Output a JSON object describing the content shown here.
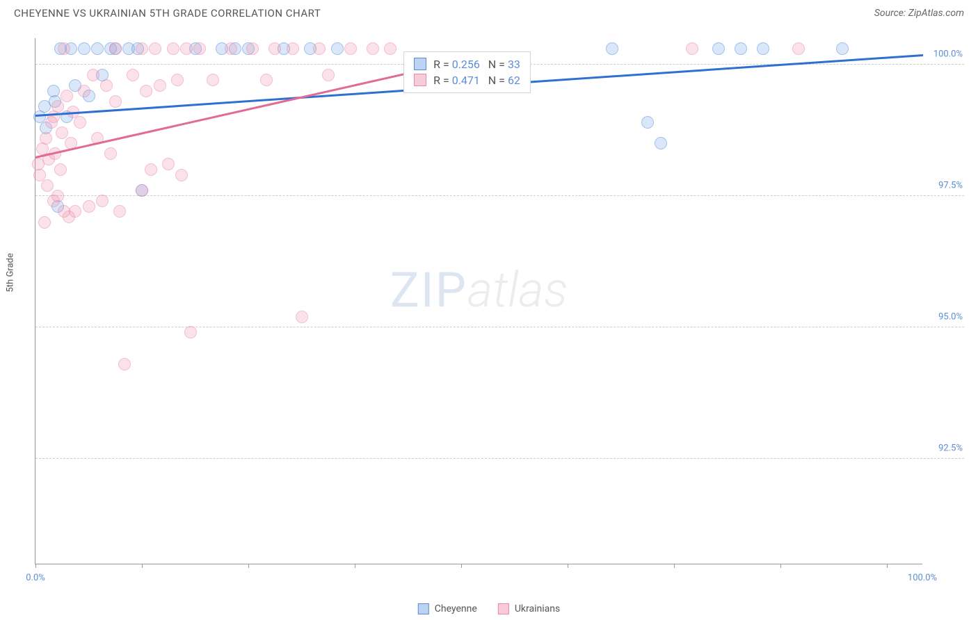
{
  "header": {
    "title": "CHEYENNE VS UKRAINIAN 5TH GRADE CORRELATION CHART",
    "source": "Source: ZipAtlas.com"
  },
  "watermark": {
    "zip": "ZIP",
    "atlas": "atlas"
  },
  "chart": {
    "type": "scatter",
    "ylabel": "5th Grade",
    "background_color": "#ffffff",
    "grid_color": "#cccccc",
    "axis_color": "#999999",
    "xlim": [
      0,
      100
    ],
    "ylim": [
      90.5,
      100.5
    ],
    "yticks": [
      {
        "value": 100.0,
        "label": "100.0%"
      },
      {
        "value": 97.5,
        "label": "97.5%"
      },
      {
        "value": 95.0,
        "label": "95.0%"
      },
      {
        "value": 92.5,
        "label": "92.5%"
      }
    ],
    "xticks": [
      0,
      12,
      24,
      36,
      48,
      60,
      72,
      84,
      96
    ],
    "xtick_labels": [
      {
        "value": 0,
        "label": "0.0%"
      },
      {
        "value": 100,
        "label": "100.0%"
      }
    ],
    "marker_radius": 9,
    "series": [
      {
        "name": "Cheyenne",
        "color_fill": "rgba(107,158,228,0.45)",
        "color_stroke": "#5b8dd6",
        "trend": {
          "x1": 0,
          "y1": 99.05,
          "x2": 100,
          "y2": 100.2,
          "color": "#2f6fd0",
          "width": 2.5
        },
        "stats": {
          "R": "0.256",
          "N": "33"
        },
        "points": [
          [
            0.5,
            99.0
          ],
          [
            1.0,
            99.2
          ],
          [
            1.2,
            98.8
          ],
          [
            2.0,
            99.5
          ],
          [
            2.2,
            99.3
          ],
          [
            2.5,
            97.3
          ],
          [
            2.8,
            100.3
          ],
          [
            3.5,
            99.0
          ],
          [
            4.0,
            100.3
          ],
          [
            4.5,
            99.6
          ],
          [
            5.5,
            100.3
          ],
          [
            6.0,
            99.4
          ],
          [
            7.0,
            100.3
          ],
          [
            7.5,
            99.8
          ],
          [
            8.5,
            100.3
          ],
          [
            9.0,
            100.3
          ],
          [
            10.5,
            100.3
          ],
          [
            11.5,
            100.3
          ],
          [
            12.0,
            97.6
          ],
          [
            18.0,
            100.3
          ],
          [
            21.0,
            100.3
          ],
          [
            22.5,
            100.3
          ],
          [
            24.0,
            100.3
          ],
          [
            28.0,
            100.3
          ],
          [
            31.0,
            100.3
          ],
          [
            34.0,
            100.3
          ],
          [
            65.0,
            100.3
          ],
          [
            69.0,
            98.9
          ],
          [
            70.5,
            98.5
          ],
          [
            77.0,
            100.3
          ],
          [
            79.5,
            100.3
          ],
          [
            82.0,
            100.3
          ],
          [
            91.0,
            100.3
          ]
        ]
      },
      {
        "name": "Ukrainians",
        "color_fill": "rgba(238,140,170,0.45)",
        "color_stroke": "#e88aa8",
        "trend": {
          "x1": 0,
          "y1": 98.25,
          "x2": 42,
          "y2": 99.85,
          "color": "#e16b92",
          "width": 2.5
        },
        "stats": {
          "R": "0.471",
          "N": "62"
        },
        "points": [
          [
            0.3,
            98.1
          ],
          [
            0.5,
            97.9
          ],
          [
            0.8,
            98.4
          ],
          [
            1.0,
            97.0
          ],
          [
            1.2,
            98.6
          ],
          [
            1.3,
            97.7
          ],
          [
            1.5,
            98.2
          ],
          [
            1.8,
            98.9
          ],
          [
            2.0,
            99.0
          ],
          [
            2.0,
            97.4
          ],
          [
            2.2,
            98.3
          ],
          [
            2.5,
            97.5
          ],
          [
            2.5,
            99.2
          ],
          [
            2.8,
            98.0
          ],
          [
            3.0,
            98.7
          ],
          [
            3.2,
            97.2
          ],
          [
            3.2,
            100.3
          ],
          [
            3.5,
            99.4
          ],
          [
            3.8,
            97.1
          ],
          [
            4.0,
            98.5
          ],
          [
            4.2,
            99.1
          ],
          [
            4.5,
            97.2
          ],
          [
            5.0,
            98.9
          ],
          [
            5.5,
            99.5
          ],
          [
            6.0,
            97.3
          ],
          [
            6.5,
            99.8
          ],
          [
            7.0,
            98.6
          ],
          [
            7.5,
            97.4
          ],
          [
            8.0,
            99.6
          ],
          [
            8.5,
            98.3
          ],
          [
            9.0,
            100.3
          ],
          [
            9.0,
            99.3
          ],
          [
            9.5,
            97.2
          ],
          [
            10.0,
            94.3
          ],
          [
            11.0,
            99.8
          ],
          [
            12.0,
            100.3
          ],
          [
            12.0,
            97.6
          ],
          [
            12.5,
            99.5
          ],
          [
            13.0,
            98.0
          ],
          [
            13.5,
            100.3
          ],
          [
            14.0,
            99.6
          ],
          [
            15.0,
            98.1
          ],
          [
            15.5,
            100.3
          ],
          [
            16.0,
            99.7
          ],
          [
            16.5,
            97.9
          ],
          [
            17.0,
            100.3
          ],
          [
            17.5,
            94.9
          ],
          [
            18.5,
            100.3
          ],
          [
            20.0,
            99.7
          ],
          [
            22.0,
            100.3
          ],
          [
            24.5,
            100.3
          ],
          [
            26.0,
            99.7
          ],
          [
            27.0,
            100.3
          ],
          [
            29.0,
            100.3
          ],
          [
            30.0,
            95.2
          ],
          [
            32.0,
            100.3
          ],
          [
            33.0,
            99.8
          ],
          [
            35.5,
            100.3
          ],
          [
            38.0,
            100.3
          ],
          [
            40.0,
            100.3
          ],
          [
            74.0,
            100.3
          ],
          [
            86.0,
            100.3
          ]
        ]
      }
    ],
    "stats_box": {
      "left_pct": 41.5,
      "top_pct": 2.5,
      "r_prefix": "R = ",
      "n_prefix": "N = "
    },
    "legend": {
      "items": [
        {
          "label": "Cheyenne",
          "fill": "rgba(107,158,228,0.45)",
          "stroke": "#5b8dd6"
        },
        {
          "label": "Ukrainians",
          "fill": "rgba(238,140,170,0.45)",
          "stroke": "#e88aa8"
        }
      ]
    }
  }
}
